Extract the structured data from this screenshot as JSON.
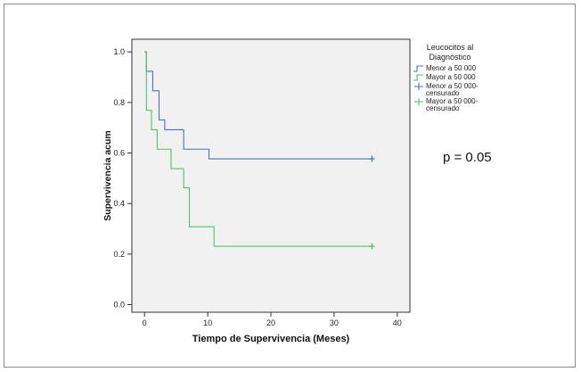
{
  "chart_data": {
    "type": "line",
    "subtype": "kaplan-meier",
    "xlabel": "Tiempo de Supervivencia (Meses)",
    "ylabel": "Supervivencia acum",
    "xlim": [
      -2,
      42
    ],
    "ylim": [
      -0.03,
      1.05
    ],
    "xticks": [
      0,
      10,
      20,
      30,
      40
    ],
    "xtick_labels": [
      "0",
      "10",
      "20",
      "30",
      "40"
    ],
    "yticks": [
      0.0,
      0.2,
      0.4,
      0.6,
      0.8,
      1.0
    ],
    "ytick_labels": [
      "0.0",
      "0.2",
      "0.4",
      "0.6",
      "0.8",
      "1.0"
    ],
    "grid": false,
    "legend_position": "top-right, outside plot",
    "legend": {
      "title_line1": "Leucocitos al",
      "title_line2": "Diagnóstico",
      "entries": [
        {
          "line1": "Menor a 50 000",
          "line2": "",
          "kind": "step",
          "series": 0
        },
        {
          "line1": "Mayor a 50 000",
          "line2": "",
          "kind": "step",
          "series": 1
        },
        {
          "line1": "Menor a 50 000-",
          "line2": "censurado",
          "kind": "censor",
          "series": 0
        },
        {
          "line1": "Mayor a 50 000-",
          "line2": "censurado",
          "kind": "censor",
          "series": 1
        }
      ]
    },
    "series": [
      {
        "name": "Menor a 50 000",
        "color": "#4a72b8",
        "steps": [
          [
            0,
            1.0
          ],
          [
            0.3,
            0.923
          ],
          [
            1.3,
            0.846
          ],
          [
            2.3,
            0.731
          ],
          [
            3.2,
            0.692
          ],
          [
            6.2,
            0.615
          ],
          [
            10.2,
            0.577
          ]
        ],
        "end_x": 36,
        "censored": [
          [
            36,
            0.577
          ]
        ]
      },
      {
        "name": "Mayor a 50 000",
        "color": "#55be6e",
        "steps": [
          [
            0,
            1.0
          ],
          [
            0.3,
            0.769
          ],
          [
            1.1,
            0.692
          ],
          [
            2.0,
            0.615
          ],
          [
            4.2,
            0.538
          ],
          [
            6.2,
            0.462
          ],
          [
            7.1,
            0.308
          ],
          [
            11.0,
            0.231
          ]
        ],
        "end_x": 36,
        "censored": [
          [
            36,
            0.231
          ]
        ]
      }
    ],
    "annotation": "p = 0.05"
  },
  "colors": {
    "plot_background": "#f1f1f1",
    "axis": "#333333"
  }
}
